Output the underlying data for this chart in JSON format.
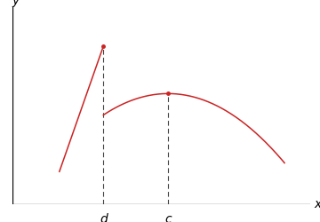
{
  "bg_color": "#ffffff",
  "curve_color": "#cc2222",
  "axis_color": "#000000",
  "dashed_color": "#444444",
  "dot_color": "#cc2222",
  "parabola_vertex_x": 6.0,
  "parabola_vertex_y": 4.2,
  "parabola_a": -0.13,
  "parabola_x_start": 3.5,
  "parabola_x_end": 10.5,
  "lifted_x_start": 1.8,
  "lifted_x_end": 3.5,
  "lifted_slope": 2.8,
  "lifted_y_at_d": 6.0,
  "d_x": 3.5,
  "c_x": 6.0,
  "xlim": [
    0,
    11.5
  ],
  "ylim": [
    0,
    7.5
  ],
  "xlabel": "x",
  "ylabel": "y",
  "label_d": "d",
  "label_c": "c",
  "figsize": [
    3.6,
    2.5
  ],
  "dpi": 100
}
